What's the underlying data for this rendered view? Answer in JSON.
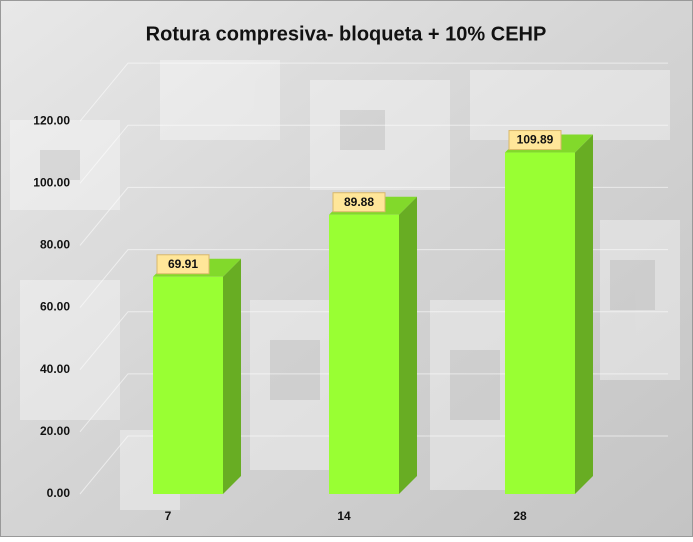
{
  "chart_data": {
    "type": "bar3d",
    "title": "Rotura compresiva- bloqueta + 10% CEHP",
    "categories": [
      "7",
      "14",
      "28"
    ],
    "values": [
      69.91,
      89.88,
      109.89
    ],
    "color": "#99ff33",
    "ylim": [
      0,
      140
    ],
    "yticks": [
      {
        "value": 0,
        "label": "0.00"
      },
      {
        "value": 20,
        "label": "20.00"
      },
      {
        "value": 40,
        "label": "40.00"
      },
      {
        "value": 60,
        "label": "60.00"
      },
      {
        "value": 80,
        "label": "80.00"
      },
      {
        "value": 100,
        "label": "100.00"
      },
      {
        "value": 120,
        "label": "120.00"
      }
    ],
    "grid": true
  }
}
